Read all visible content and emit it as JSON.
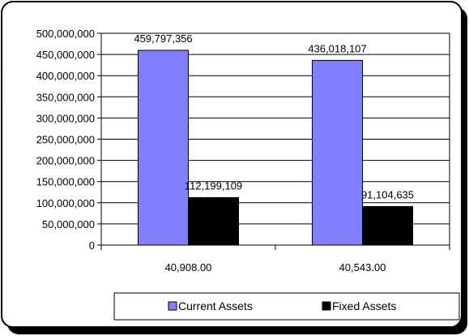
{
  "chart_data": {
    "type": "bar",
    "categories": [
      "40,908.00",
      "40,543.00"
    ],
    "series": [
      {
        "name": "Current Assets",
        "values": [
          459797356,
          436018107
        ],
        "color": "#8080ff"
      },
      {
        "name": "Fixed Assets",
        "values": [
          112199109,
          91104635
        ],
        "color": "#000000"
      }
    ],
    "data_labels": [
      [
        "459,797,356",
        "436,018,107"
      ],
      [
        "112,199,109",
        "91,104,635"
      ]
    ],
    "yticks": [
      "0",
      "50,000,000",
      "100,000,000",
      "150,000,000",
      "200,000,000",
      "250,000,000",
      "300,000,000",
      "350,000,000",
      "400,000,000",
      "450,000,000",
      "500,000,000"
    ],
    "ylim": [
      0,
      500000000
    ],
    "grid": true,
    "legend": "bottom-right"
  }
}
